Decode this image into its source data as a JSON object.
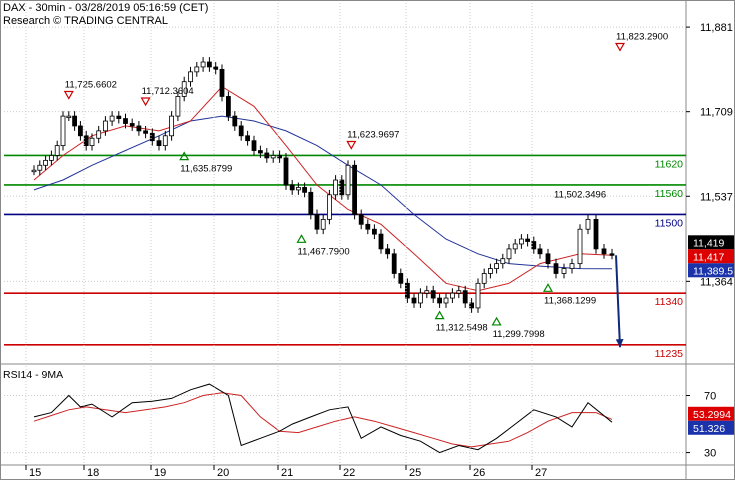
{
  "header": {
    "line1": "DAX - 30min - 03/28/2019 05:16:59 (CET)",
    "line2": "Research © TRADING CENTRAL"
  },
  "colors": {
    "support": "#cc0000",
    "resistance": "#008800",
    "pivot": "#000080",
    "candle": "#000000",
    "ma_fast": "#cc2222",
    "ma_slow": "#223399",
    "rsi": "#000000",
    "rsi_ma": "#cc2222",
    "last_badge": "#000000",
    "ma_fast_badge": "#dd0000",
    "ma_slow_badge": "#1a33aa"
  },
  "chart_data": [
    {
      "type": "candlestick",
      "x_labels": [
        "15",
        "18",
        "19",
        "20",
        "21",
        "22",
        "25",
        "26",
        "27"
      ],
      "y_ticks": [
        "11,881",
        "11,709",
        "11,537",
        "11,364"
      ],
      "y_tick_values": [
        11881,
        11709,
        11537,
        11364
      ],
      "ylim": [
        11200,
        11930
      ],
      "levels": [
        {
          "value": 11620,
          "label": "11620",
          "role": "resistance"
        },
        {
          "value": 11560,
          "label": "11560",
          "role": "resistance"
        },
        {
          "value": 11500,
          "label": "11500",
          "role": "pivot"
        },
        {
          "value": 11340,
          "label": "11340",
          "role": "support"
        },
        {
          "value": 11235,
          "label": "11235",
          "role": "support"
        }
      ],
      "annotations": [
        {
          "text": "11,823.2900",
          "x": 10.5,
          "y": 11823.29,
          "marker": "down"
        },
        {
          "text": "11,725.6602",
          "x": 0.6,
          "y": 11725.66,
          "marker": "down"
        },
        {
          "text": "11,712.3604",
          "x": 1.8,
          "y": 11712.36,
          "marker": "down"
        },
        {
          "text": "11,635.8799",
          "x": 2.4,
          "y": 11635.88,
          "marker": "up"
        },
        {
          "text": "11,623.9697",
          "x": 5.05,
          "y": 11623.97,
          "marker": "down"
        },
        {
          "text": "11,467.7900",
          "x": 4.25,
          "y": 11467.79,
          "marker": "up"
        },
        {
          "text": "11,312.5498",
          "x": 6.4,
          "y": 11312.55,
          "marker": "up"
        },
        {
          "text": "11,299.7998",
          "x": 7.3,
          "y": 11299.8,
          "marker": "up"
        },
        {
          "text": "11,502.3496",
          "x": 8.55,
          "y": 11502.35,
          "marker": "none"
        },
        {
          "text": "11,368.1299",
          "x": 8.1,
          "y": 11368.13,
          "marker": "up"
        }
      ],
      "badges": [
        {
          "text": "11,419",
          "value": 11419,
          "role": "last"
        },
        {
          "text": "11,417",
          "value": 11417,
          "role": "ma_fast"
        },
        {
          "text": "11,389.5",
          "value": 11389.5,
          "role": "ma_slow"
        }
      ],
      "projection": {
        "from": [
          8.95,
          11417
        ],
        "to": [
          9.55,
          11230
        ]
      },
      "series": [
        {
          "name": "price",
          "kind": "close",
          "x": [
            0,
            0.1,
            0.2,
            0.3,
            0.4,
            0.5,
            0.6,
            0.7,
            0.8,
            0.9,
            1.0,
            1.1,
            1.2,
            1.3,
            1.4,
            1.5,
            1.6,
            1.7,
            1.8,
            1.9,
            2.0,
            2.1,
            2.2,
            2.3,
            2.4,
            2.5,
            2.6,
            2.7,
            2.8,
            2.9,
            3.0,
            3.1,
            3.2,
            3.3,
            3.4,
            3.5,
            3.6,
            3.7,
            3.8,
            3.9,
            4.0,
            4.1,
            4.2,
            4.3,
            4.4,
            4.5,
            4.6,
            4.7,
            4.8,
            4.9,
            5.0,
            5.1,
            5.2,
            5.3,
            5.4,
            5.5,
            5.6,
            5.7,
            5.8,
            5.9,
            6.0,
            6.1,
            6.2,
            6.3,
            6.4,
            6.5,
            6.6,
            6.7,
            6.8,
            6.9,
            7.0,
            7.1,
            7.2,
            7.3,
            7.4,
            7.5,
            7.6,
            7.7,
            7.8,
            7.9,
            8.0,
            8.1,
            8.2,
            8.3,
            8.4,
            8.5,
            8.6,
            8.7,
            8.8,
            8.9
          ],
          "values": [
            11590,
            11600,
            11610,
            11620,
            11640,
            11700,
            11700,
            11680,
            11660,
            11640,
            11655,
            11670,
            11690,
            11700,
            11695,
            11685,
            11680,
            11670,
            11665,
            11650,
            11640,
            11660,
            11700,
            11740,
            11770,
            11790,
            11800,
            11810,
            11800,
            11795,
            11740,
            11700,
            11680,
            11660,
            11650,
            11630,
            11625,
            11615,
            11620,
            11615,
            11560,
            11550,
            11555,
            11545,
            11500,
            11470,
            11490,
            11540,
            11570,
            11540,
            11600,
            11500,
            11480,
            11470,
            11460,
            11430,
            11420,
            11380,
            11360,
            11330,
            11320,
            11340,
            11345,
            11330,
            11320,
            11330,
            11340,
            11345,
            11320,
            11310,
            11360,
            11380,
            11390,
            11400,
            11410,
            11430,
            11440,
            11450,
            11445,
            11430,
            11420,
            11400,
            11380,
            11390,
            11400,
            11470,
            11490,
            11430,
            11420,
            11419
          ]
        },
        {
          "name": "ma_fast",
          "kind": "line",
          "x": [
            0,
            0.5,
            1,
            1.5,
            2,
            2.5,
            3,
            3.5,
            4,
            4.5,
            5,
            5.5,
            6,
            6.5,
            7,
            7.5,
            8,
            8.5,
            8.9
          ],
          "values": [
            11570,
            11620,
            11660,
            11680,
            11670,
            11690,
            11760,
            11720,
            11640,
            11560,
            11510,
            11480,
            11420,
            11360,
            11345,
            11360,
            11400,
            11420,
            11417
          ]
        },
        {
          "name": "ma_slow",
          "kind": "line",
          "x": [
            0,
            0.5,
            1,
            1.5,
            2,
            2.5,
            3,
            3.5,
            4,
            4.5,
            5,
            5.5,
            6,
            6.5,
            7,
            7.5,
            8,
            8.5,
            8.9
          ],
          "values": [
            11550,
            11570,
            11600,
            11630,
            11660,
            11690,
            11700,
            11690,
            11670,
            11640,
            11600,
            11560,
            11500,
            11450,
            11420,
            11400,
            11395,
            11390,
            11389.5
          ]
        }
      ]
    },
    {
      "type": "line",
      "title": "RSI14 - 9MA",
      "y_ticks": [
        "70",
        "30"
      ],
      "y_tick_values": [
        70,
        30
      ],
      "ylim": [
        22,
        90
      ],
      "badges": [
        {
          "text": "53.2994",
          "value": 53.2994,
          "role": "rsi_ma"
        },
        {
          "text": "51.326",
          "value": 51.326,
          "role": "rsi"
        }
      ],
      "series": [
        {
          "name": "rsi",
          "x": [
            0,
            0.3,
            0.6,
            0.8,
            1.0,
            1.3,
            1.6,
            1.9,
            2.2,
            2.5,
            2.8,
            3.1,
            3.3,
            3.6,
            3.9,
            4.1,
            4.4,
            4.7,
            5.0,
            5.2,
            5.5,
            5.8,
            6.1,
            6.4,
            6.7,
            7.0,
            7.3,
            7.6,
            7.9,
            8.2,
            8.4,
            8.6,
            8.9
          ],
          "values": [
            55,
            58,
            70,
            62,
            64,
            55,
            65,
            66,
            68,
            74,
            78,
            70,
            35,
            40,
            45,
            50,
            55,
            60,
            62,
            40,
            48,
            42,
            38,
            30,
            35,
            32,
            40,
            50,
            60,
            55,
            48,
            65,
            51.326
          ]
        },
        {
          "name": "rsi_ma",
          "x": [
            0,
            0.3,
            0.6,
            0.9,
            1.2,
            1.5,
            1.8,
            2.1,
            2.4,
            2.7,
            3.0,
            3.3,
            3.6,
            3.9,
            4.2,
            4.5,
            4.8,
            5.1,
            5.4,
            5.7,
            6.0,
            6.3,
            6.6,
            6.9,
            7.2,
            7.5,
            7.8,
            8.1,
            8.4,
            8.7,
            8.9
          ],
          "values": [
            52,
            56,
            60,
            62,
            60,
            58,
            60,
            62,
            65,
            70,
            72,
            70,
            55,
            45,
            44,
            48,
            52,
            55,
            52,
            48,
            44,
            40,
            36,
            34,
            36,
            38,
            44,
            52,
            58,
            58,
            53.2994
          ]
        }
      ]
    }
  ]
}
